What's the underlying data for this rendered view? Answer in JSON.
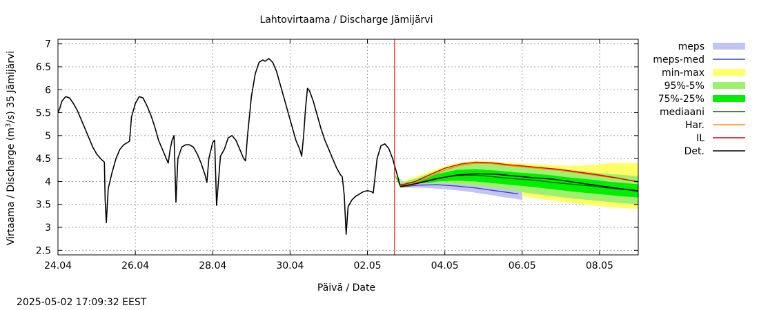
{
  "chart_data": {
    "type": "area",
    "title": "Lahtovirtaama / Discharge  Jämijärvi",
    "xlabel": "Päivä / Date",
    "ylabel_parts": [
      "Virtaama / Discharge (m",
      "3",
      "/s)  35 Jämijärvi"
    ],
    "timestamp": "2025-05-02 17:09:32 EEST",
    "x_unit": "days since 24.04 00:00",
    "xlim": [
      0,
      15
    ],
    "ylim": [
      2.4,
      7.1
    ],
    "x_ticks": [
      {
        "x": 0,
        "label": "24.04"
      },
      {
        "x": 2,
        "label": "26.04"
      },
      {
        "x": 4,
        "label": "28.04"
      },
      {
        "x": 6,
        "label": "30.04"
      },
      {
        "x": 8,
        "label": "02.05"
      },
      {
        "x": 10,
        "label": "04.05"
      },
      {
        "x": 12,
        "label": "06.05"
      },
      {
        "x": 14,
        "label": "08.05"
      }
    ],
    "y_ticks": [
      {
        "y": 2.5,
        "label": "2.5"
      },
      {
        "y": 3,
        "label": "3"
      },
      {
        "y": 3.5,
        "label": "3.5"
      },
      {
        "y": 4,
        "label": "4"
      },
      {
        "y": 4.5,
        "label": "4.5"
      },
      {
        "y": 5,
        "label": "5"
      },
      {
        "y": 5.5,
        "label": "5.5"
      },
      {
        "y": 6,
        "label": "6"
      },
      {
        "y": 6.5,
        "label": "6.5"
      },
      {
        "y": 7,
        "label": "7"
      }
    ],
    "grid": true,
    "legend_position": "right",
    "now_line_x": 8.7,
    "legend": [
      {
        "key": "meps",
        "label": "meps",
        "kind": "box",
        "color": "#c4c4f4"
      },
      {
        "key": "meps_med",
        "label": "meps-med",
        "kind": "line",
        "color": "#4040c0"
      },
      {
        "key": "minmax",
        "label": "min-max",
        "kind": "box",
        "color": "#ffff66"
      },
      {
        "key": "p95_5",
        "label": "95%-5%",
        "kind": "box",
        "color": "#a0f070"
      },
      {
        "key": "p75_25",
        "label": "75%-25%",
        "kind": "box",
        "color": "#00ee00"
      },
      {
        "key": "median",
        "label": "mediaani",
        "kind": "line",
        "color": "#006400"
      },
      {
        "key": "har",
        "label": "Har.",
        "kind": "line",
        "color": "#ff8c00"
      },
      {
        "key": "il",
        "label": "IL",
        "kind": "line",
        "color": "#e00000"
      },
      {
        "key": "det",
        "label": "Det.",
        "kind": "line",
        "color": "#000000"
      }
    ],
    "series": [
      {
        "key": "observed",
        "name": "Det.",
        "color": "#000000",
        "points": [
          [
            0,
            5.5
          ],
          [
            0.05,
            5.6
          ],
          [
            0.1,
            5.75
          ],
          [
            0.2,
            5.85
          ],
          [
            0.3,
            5.82
          ],
          [
            0.4,
            5.7
          ],
          [
            0.5,
            5.55
          ],
          [
            0.6,
            5.35
          ],
          [
            0.7,
            5.15
          ],
          [
            0.8,
            4.95
          ],
          [
            0.9,
            4.75
          ],
          [
            1.0,
            4.6
          ],
          [
            1.1,
            4.5
          ],
          [
            1.2,
            4.42
          ],
          [
            1.22,
            3.6
          ],
          [
            1.25,
            3.1
          ],
          [
            1.3,
            3.85
          ],
          [
            1.4,
            4.2
          ],
          [
            1.5,
            4.5
          ],
          [
            1.6,
            4.7
          ],
          [
            1.7,
            4.8
          ],
          [
            1.8,
            4.85
          ],
          [
            1.85,
            4.88
          ],
          [
            1.9,
            5.4
          ],
          [
            2.0,
            5.7
          ],
          [
            2.1,
            5.85
          ],
          [
            2.2,
            5.82
          ],
          [
            2.3,
            5.65
          ],
          [
            2.4,
            5.45
          ],
          [
            2.5,
            5.2
          ],
          [
            2.6,
            4.9
          ],
          [
            2.7,
            4.7
          ],
          [
            2.8,
            4.5
          ],
          [
            2.85,
            4.4
          ],
          [
            2.9,
            4.7
          ],
          [
            2.95,
            4.9
          ],
          [
            3.0,
            5.0
          ],
          [
            3.05,
            3.55
          ],
          [
            3.1,
            4.5
          ],
          [
            3.2,
            4.75
          ],
          [
            3.3,
            4.8
          ],
          [
            3.4,
            4.8
          ],
          [
            3.5,
            4.75
          ],
          [
            3.6,
            4.6
          ],
          [
            3.7,
            4.4
          ],
          [
            3.8,
            4.15
          ],
          [
            3.85,
            3.98
          ],
          [
            3.9,
            4.5
          ],
          [
            4.0,
            4.85
          ],
          [
            4.05,
            4.9
          ],
          [
            4.1,
            3.48
          ],
          [
            4.2,
            4.55
          ],
          [
            4.3,
            4.7
          ],
          [
            4.4,
            4.95
          ],
          [
            4.5,
            5.0
          ],
          [
            4.6,
            4.9
          ],
          [
            4.7,
            4.7
          ],
          [
            4.8,
            4.5
          ],
          [
            4.85,
            4.45
          ],
          [
            4.9,
            5.0
          ],
          [
            5.0,
            5.85
          ],
          [
            5.1,
            6.35
          ],
          [
            5.2,
            6.6
          ],
          [
            5.3,
            6.65
          ],
          [
            5.35,
            6.62
          ],
          [
            5.45,
            6.68
          ],
          [
            5.55,
            6.6
          ],
          [
            5.65,
            6.4
          ],
          [
            5.75,
            6.1
          ],
          [
            5.85,
            5.8
          ],
          [
            5.95,
            5.5
          ],
          [
            6.05,
            5.2
          ],
          [
            6.15,
            4.9
          ],
          [
            6.25,
            4.7
          ],
          [
            6.3,
            4.55
          ],
          [
            6.35,
            5.0
          ],
          [
            6.4,
            5.6
          ],
          [
            6.45,
            6.03
          ],
          [
            6.5,
            5.98
          ],
          [
            6.6,
            5.75
          ],
          [
            6.7,
            5.45
          ],
          [
            6.8,
            5.15
          ],
          [
            6.9,
            4.9
          ],
          [
            7.0,
            4.7
          ],
          [
            7.1,
            4.5
          ],
          [
            7.2,
            4.3
          ],
          [
            7.3,
            4.15
          ],
          [
            7.35,
            4.1
          ],
          [
            7.4,
            3.7
          ],
          [
            7.45,
            2.85
          ],
          [
            7.5,
            3.45
          ],
          [
            7.6,
            3.6
          ],
          [
            7.7,
            3.68
          ],
          [
            7.8,
            3.73
          ],
          [
            7.9,
            3.78
          ],
          [
            8.0,
            3.8
          ],
          [
            8.1,
            3.78
          ],
          [
            8.15,
            3.75
          ],
          [
            8.25,
            4.5
          ],
          [
            8.35,
            4.78
          ],
          [
            8.45,
            4.82
          ],
          [
            8.55,
            4.72
          ],
          [
            8.65,
            4.5
          ],
          [
            8.7,
            4.35
          ],
          [
            8.75,
            4.2
          ],
          [
            8.8,
            4.05
          ],
          [
            8.85,
            3.9
          ]
        ]
      },
      {
        "key": "meps_med",
        "name": "meps-med",
        "color": "#4040c0",
        "points": [
          [
            8.85,
            3.88
          ],
          [
            9.3,
            3.92
          ],
          [
            9.8,
            3.93
          ],
          [
            10.3,
            3.9
          ],
          [
            10.8,
            3.86
          ],
          [
            11.3,
            3.8
          ],
          [
            11.9,
            3.73
          ]
        ]
      },
      {
        "key": "median",
        "name": "mediaani",
        "color": "#006400",
        "points": [
          [
            8.85,
            3.9
          ],
          [
            9.3,
            3.97
          ],
          [
            9.8,
            4.07
          ],
          [
            10.3,
            4.13
          ],
          [
            10.8,
            4.14
          ],
          [
            11.3,
            4.1
          ],
          [
            11.8,
            4.06
          ],
          [
            12.3,
            4.03
          ],
          [
            12.8,
            3.98
          ],
          [
            13.3,
            3.94
          ],
          [
            13.8,
            3.9
          ],
          [
            14.3,
            3.85
          ],
          [
            15.0,
            3.8
          ]
        ]
      },
      {
        "key": "har",
        "name": "Har.",
        "color": "#ff8c00",
        "points": [
          [
            8.85,
            3.9
          ],
          [
            9.2,
            3.96
          ],
          [
            9.6,
            4.1
          ],
          [
            10.0,
            4.25
          ],
          [
            10.4,
            4.35
          ],
          [
            10.8,
            4.4
          ],
          [
            11.2,
            4.39
          ],
          [
            11.6,
            4.35
          ],
          [
            12.0,
            4.32
          ],
          [
            12.5,
            4.28
          ],
          [
            13.0,
            4.24
          ],
          [
            13.5,
            4.18
          ],
          [
            14.0,
            4.12
          ],
          [
            14.5,
            4.06
          ],
          [
            15.0,
            4.0
          ]
        ]
      },
      {
        "key": "il",
        "name": "IL",
        "color": "#e00000",
        "points": [
          [
            8.85,
            3.92
          ],
          [
            9.2,
            3.99
          ],
          [
            9.6,
            4.14
          ],
          [
            10.0,
            4.29
          ],
          [
            10.4,
            4.38
          ],
          [
            10.8,
            4.42
          ],
          [
            11.2,
            4.41
          ],
          [
            11.6,
            4.37
          ],
          [
            12.0,
            4.34
          ],
          [
            12.5,
            4.3
          ],
          [
            13.0,
            4.26
          ],
          [
            13.5,
            4.2
          ],
          [
            14.0,
            4.14
          ],
          [
            14.5,
            4.07
          ],
          [
            15.0,
            3.99
          ]
        ]
      },
      {
        "key": "det",
        "name": "Det.",
        "color": "#000000",
        "points": [
          [
            8.85,
            3.89
          ],
          [
            9.3,
            3.96
          ],
          [
            9.8,
            4.06
          ],
          [
            10.3,
            4.14
          ],
          [
            10.8,
            4.17
          ],
          [
            11.3,
            4.16
          ],
          [
            11.8,
            4.12
          ],
          [
            12.3,
            4.08
          ],
          [
            12.8,
            4.05
          ],
          [
            13.3,
            3.99
          ],
          [
            13.8,
            3.93
          ],
          [
            14.3,
            3.87
          ],
          [
            15.0,
            3.79
          ]
        ]
      }
    ],
    "bands": [
      {
        "key": "minmax",
        "color": "#ffff66",
        "upper": [
          [
            8.65,
            4.22
          ],
          [
            8.85,
            4.0
          ],
          [
            9.3,
            4.12
          ],
          [
            9.8,
            4.28
          ],
          [
            10.3,
            4.4
          ],
          [
            10.8,
            4.45
          ],
          [
            11.3,
            4.43
          ],
          [
            11.8,
            4.4
          ],
          [
            12.3,
            4.38
          ],
          [
            12.8,
            4.36
          ],
          [
            13.3,
            4.34
          ],
          [
            13.8,
            4.36
          ],
          [
            14.3,
            4.4
          ],
          [
            15.0,
            4.4
          ]
        ],
        "lower": [
          [
            8.65,
            4.22
          ],
          [
            8.85,
            3.85
          ],
          [
            9.3,
            3.87
          ],
          [
            9.8,
            3.89
          ],
          [
            10.3,
            3.87
          ],
          [
            10.8,
            3.83
          ],
          [
            11.3,
            3.76
          ],
          [
            11.8,
            3.7
          ],
          [
            12.3,
            3.64
          ],
          [
            12.8,
            3.58
          ],
          [
            13.3,
            3.53
          ],
          [
            13.8,
            3.48
          ],
          [
            14.3,
            3.44
          ],
          [
            15.0,
            3.4
          ]
        ]
      },
      {
        "key": "p95_5",
        "color": "#a0f070",
        "upper": [
          [
            8.65,
            4.22
          ],
          [
            8.85,
            3.97
          ],
          [
            9.3,
            4.08
          ],
          [
            9.8,
            4.24
          ],
          [
            10.3,
            4.36
          ],
          [
            10.8,
            4.4
          ],
          [
            11.3,
            4.38
          ],
          [
            11.8,
            4.34
          ],
          [
            12.3,
            4.3
          ],
          [
            12.8,
            4.27
          ],
          [
            13.3,
            4.24
          ],
          [
            13.8,
            4.2
          ],
          [
            14.3,
            4.16
          ],
          [
            15.0,
            4.12
          ]
        ],
        "lower": [
          [
            8.65,
            4.22
          ],
          [
            8.85,
            3.87
          ],
          [
            9.3,
            3.9
          ],
          [
            9.8,
            3.94
          ],
          [
            10.3,
            3.93
          ],
          [
            10.8,
            3.9
          ],
          [
            11.3,
            3.84
          ],
          [
            11.8,
            3.79
          ],
          [
            12.3,
            3.73
          ],
          [
            12.8,
            3.68
          ],
          [
            13.3,
            3.63
          ],
          [
            13.8,
            3.59
          ],
          [
            14.3,
            3.55
          ],
          [
            15.0,
            3.5
          ]
        ]
      },
      {
        "key": "p75_25",
        "color": "#00ee00",
        "upper": [
          [
            8.65,
            4.22
          ],
          [
            8.85,
            3.94
          ],
          [
            9.3,
            4.03
          ],
          [
            9.8,
            4.16
          ],
          [
            10.3,
            4.25
          ],
          [
            10.8,
            4.27
          ],
          [
            11.3,
            4.24
          ],
          [
            11.8,
            4.2
          ],
          [
            12.3,
            4.17
          ],
          [
            12.8,
            4.13
          ],
          [
            13.3,
            4.08
          ],
          [
            13.8,
            4.04
          ],
          [
            14.3,
            3.99
          ],
          [
            15.0,
            3.94
          ]
        ],
        "lower": [
          [
            8.65,
            4.22
          ],
          [
            8.85,
            3.88
          ],
          [
            9.3,
            3.93
          ],
          [
            9.8,
            4.0
          ],
          [
            10.3,
            4.02
          ],
          [
            10.8,
            4.0
          ],
          [
            11.3,
            3.96
          ],
          [
            11.8,
            3.92
          ],
          [
            12.3,
            3.88
          ],
          [
            12.8,
            3.83
          ],
          [
            13.3,
            3.78
          ],
          [
            13.8,
            3.74
          ],
          [
            14.3,
            3.7
          ],
          [
            15.0,
            3.65
          ]
        ]
      },
      {
        "key": "meps",
        "color": "#c4c4f4",
        "upper": [
          [
            8.75,
            4.12
          ],
          [
            9.0,
            3.95
          ],
          [
            9.5,
            3.97
          ],
          [
            10.0,
            3.96
          ],
          [
            10.5,
            3.93
          ],
          [
            11.0,
            3.89
          ],
          [
            11.5,
            3.84
          ],
          [
            12.0,
            3.78
          ]
        ],
        "lower": [
          [
            8.75,
            4.12
          ],
          [
            9.0,
            3.87
          ],
          [
            9.5,
            3.86
          ],
          [
            10.0,
            3.83
          ],
          [
            10.5,
            3.79
          ],
          [
            11.0,
            3.73
          ],
          [
            11.5,
            3.66
          ],
          [
            12.0,
            3.6
          ]
        ]
      }
    ]
  }
}
